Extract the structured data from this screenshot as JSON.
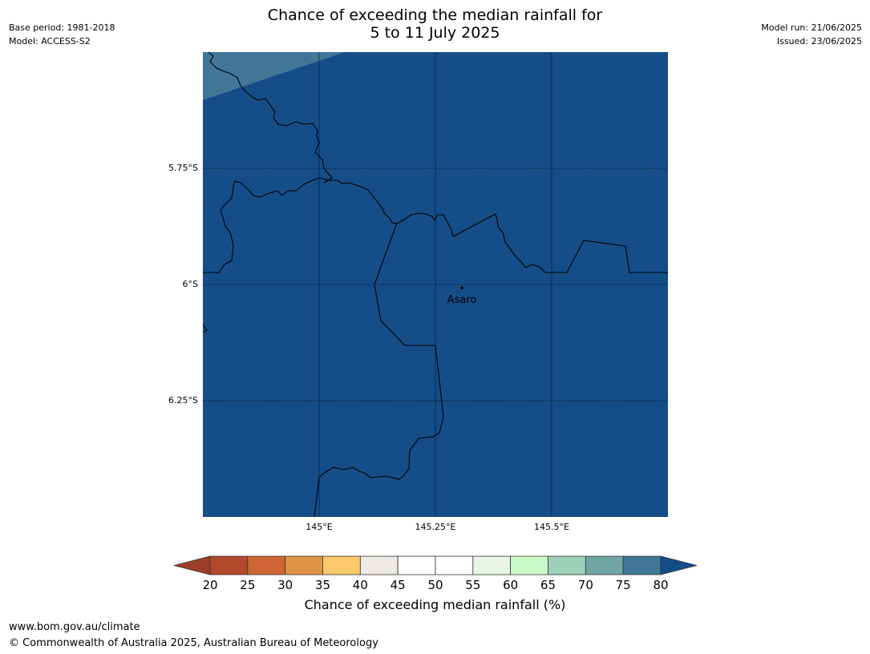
{
  "title": {
    "line1": "Chance of exceeding the median rainfall for",
    "line2": "5 to 11 July 2025"
  },
  "meta_left": {
    "base_period": "Base period: 1981-2018",
    "model": "Model: ACCESS-S2"
  },
  "meta_right": {
    "model_run": "Model run: 21/06/2025",
    "issued": "Issued: 23/06/2025"
  },
  "map": {
    "background_color": "#154d88",
    "corner_color": "#417698",
    "lat_labels": [
      "5.75°S",
      "6°S",
      "6.25°S"
    ],
    "lon_labels": [
      "145°E",
      "145.25°E",
      "145.5°E"
    ],
    "place": {
      "name": "Asaro"
    }
  },
  "colorbar": {
    "ticks": [
      "20",
      "25",
      "30",
      "35",
      "40",
      "45",
      "50",
      "55",
      "60",
      "65",
      "70",
      "75",
      "80"
    ],
    "low_extend_color": "#9c3e27",
    "high_extend_color": "#154d88",
    "colors": [
      "#b2492a",
      "#cf6532",
      "#e19446",
      "#fdc96a",
      "#ede9e4",
      "#ffffff",
      "#ffffff",
      "#e9f6e7",
      "#c8fbc8",
      "#9dd0b8",
      "#6fa5a5",
      "#417698"
    ],
    "label": "Chance of exceeding median rainfall (%)"
  },
  "footer": {
    "url": "www.bom.gov.au/climate",
    "copyright": "© Commonwealth of Australia 2025, Australian Bureau of Meteorology"
  }
}
